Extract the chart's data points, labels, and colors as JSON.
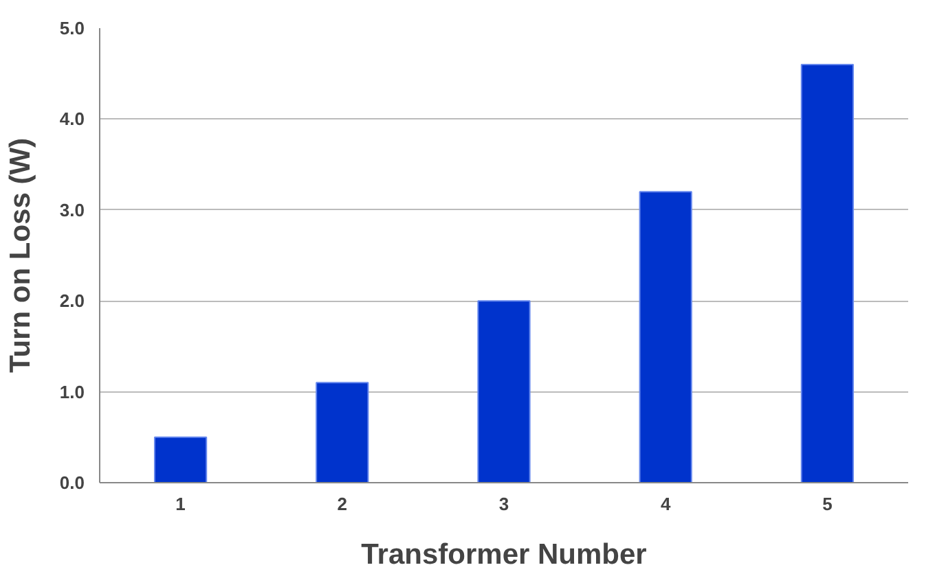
{
  "chart_data": {
    "type": "bar",
    "xlabel": "Transformer Number",
    "ylabel": "Turn on Loss (W)",
    "categories": [
      "1",
      "2",
      "3",
      "4",
      "5"
    ],
    "values": [
      0.5,
      1.1,
      2.0,
      3.2,
      4.6
    ],
    "color": "#0033cc",
    "ylim": [
      0,
      5
    ],
    "yticks": [
      {
        "value": 0,
        "label": "0.0"
      },
      {
        "value": 1,
        "label": "1.0"
      },
      {
        "value": 2,
        "label": "2.0"
      },
      {
        "value": 3,
        "label": "3.0"
      },
      {
        "value": 4,
        "label": "4.0"
      },
      {
        "value": 5,
        "label": "5.0"
      }
    ],
    "grid": "y"
  }
}
